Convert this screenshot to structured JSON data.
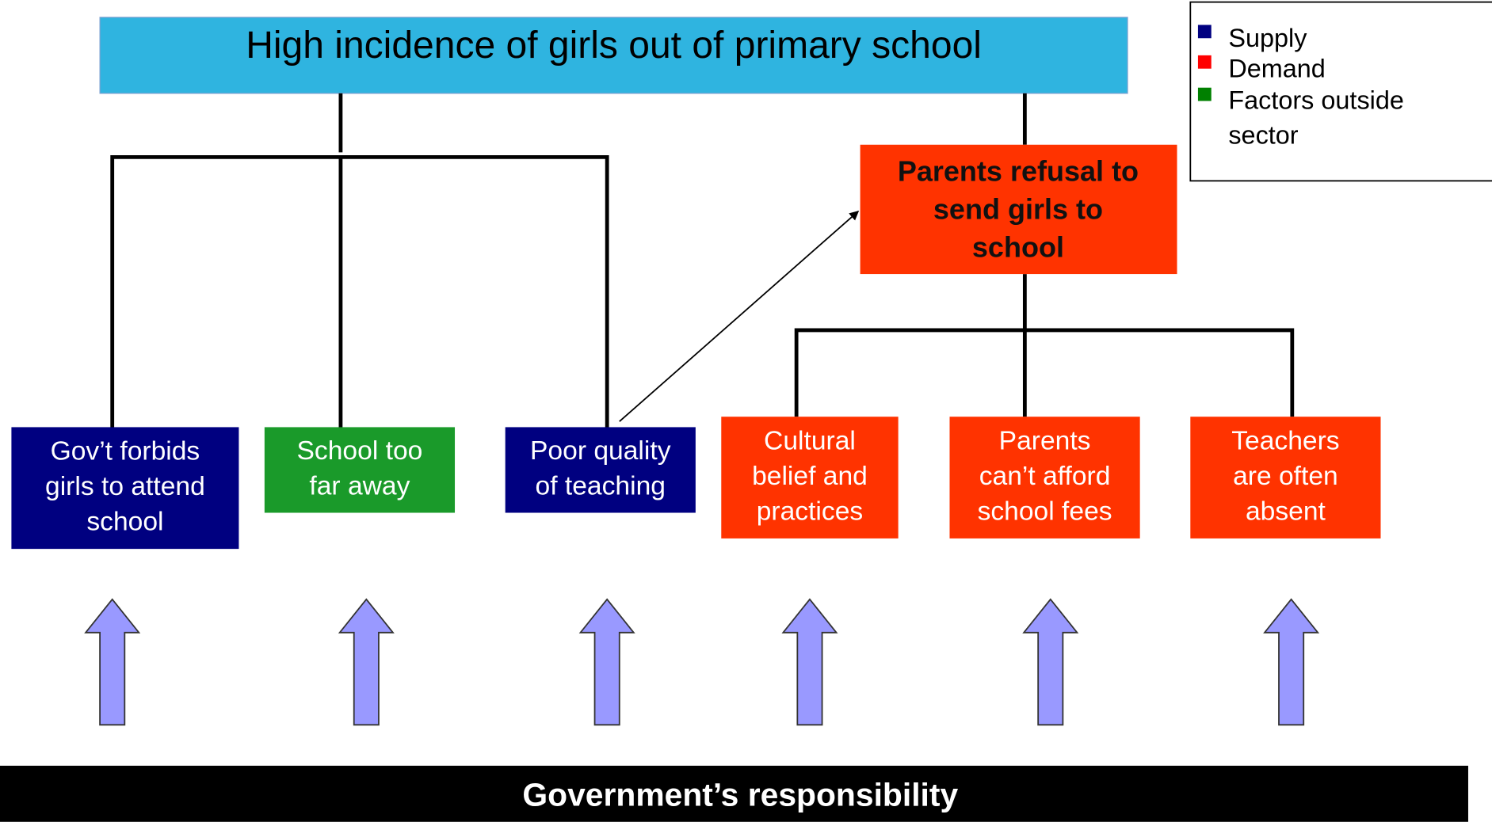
{
  "title": "High incidence of girls out of primary school",
  "legend": [
    "Supply",
    "Demand",
    [
      "Factors outside",
      "sector"
    ]
  ],
  "cause": [
    "Parents refusal to",
    "send girls to",
    "school"
  ],
  "nodes": [
    [
      "Gov’t forbids",
      "girls to attend",
      "school"
    ],
    [
      "School too",
      "far away"
    ],
    [
      "Poor quality",
      "of teaching"
    ],
    [
      "Cultural",
      "belief and",
      "practices"
    ],
    [
      "Parents",
      "can’t afford",
      "school fees"
    ],
    [
      "Teachers",
      "are often",
      "absent"
    ]
  ],
  "footer": "Government’s responsibility"
}
